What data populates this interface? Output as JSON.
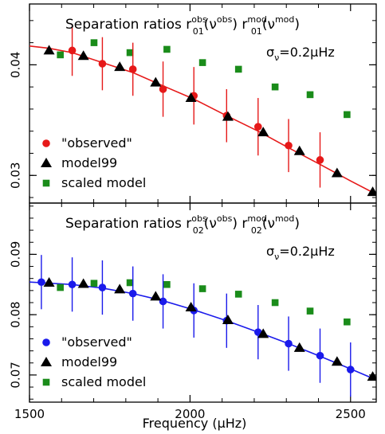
{
  "chart_data": [
    {
      "type": "scatter",
      "title": {
        "prefix": "Separation ratios",
        "sym1": "r",
        "sub1": "01",
        "sup1": "obs",
        "arg1": "ν",
        "arg1sup": "obs",
        "sym2": "r",
        "sub2": "01",
        "sup2": "mod",
        "arg2": "ν",
        "arg2sup": "mod"
      },
      "annotation": {
        "sym": "σ",
        "sub": "ν",
        "text": "=0.2μHz"
      },
      "xlim": [
        1500,
        2580
      ],
      "ylim": [
        0.0275,
        0.0455
      ],
      "yticks": [
        0.03,
        0.04
      ],
      "ytick_labels": [
        "0.03",
        "0.04"
      ],
      "xticks": [
        1500,
        2000,
        2500
      ],
      "xtick_labels": [
        "",
        "",
        ""
      ],
      "grid": false,
      "legend_position": "bottom-left",
      "series": [
        {
          "name": "\"observed\"",
          "marker": "circle",
          "color": "#e61919",
          "x": [
            1633,
            1727,
            1822,
            1916,
            2012,
            2114,
            2212,
            2307,
            2405
          ],
          "y": [
            0.0413,
            0.0401,
            0.0396,
            0.0378,
            0.0372,
            0.0354,
            0.0344,
            0.0327,
            0.0314
          ],
          "err": [
            0.0023,
            0.0024,
            0.0024,
            0.0025,
            0.0026,
            0.0024,
            0.0026,
            0.0024,
            0.0025
          ]
        },
        {
          "name": "model99",
          "marker": "triangle",
          "color": "#000000",
          "x": [
            1561,
            1668,
            1781,
            1893,
            2003,
            2118,
            2228,
            2341,
            2458,
            2569
          ],
          "y": [
            0.0413,
            0.0408,
            0.0398,
            0.0384,
            0.037,
            0.0353,
            0.0339,
            0.0322,
            0.0302,
            0.0285
          ]
        },
        {
          "name": "scaled model",
          "marker": "square",
          "color": "#1a8c1a",
          "x": [
            1596,
            1701,
            1813,
            1928,
            2039,
            2151,
            2265,
            2374,
            2489
          ],
          "y": [
            0.0409,
            0.042,
            0.0411,
            0.0414,
            0.0402,
            0.0396,
            0.038,
            0.0373,
            0.0355
          ]
        }
      ],
      "fit_line": {
        "color": "#e61919",
        "x": [
          1500,
          1560,
          1633,
          1727,
          1822,
          1916,
          2012,
          2114,
          2212,
          2307,
          2405,
          2500,
          2580
        ],
        "y": [
          0.0417,
          0.0415,
          0.0411,
          0.0402,
          0.0393,
          0.0381,
          0.0369,
          0.0354,
          0.034,
          0.0325,
          0.031,
          0.0295,
          0.0283
        ]
      }
    },
    {
      "type": "scatter",
      "title": {
        "prefix": "Separation ratios",
        "sym1": "r",
        "sub1": "02",
        "sup1": "obs",
        "arg1": "ν",
        "arg1sup": "obs",
        "sym2": "r",
        "sub2": "02",
        "sup2": "mod",
        "arg2": "ν",
        "arg2sup": "mod"
      },
      "annotation": {
        "sym": "σ",
        "sub": "ν",
        "text": "=0.2μHz"
      },
      "xlim": [
        1500,
        2580
      ],
      "ylim": [
        0.0655,
        0.0985
      ],
      "yticks": [
        0.07,
        0.08,
        0.09
      ],
      "ytick_labels": [
        "0.07",
        "0.08",
        "0.09"
      ],
      "xticks": [
        1500,
        2000,
        2500
      ],
      "xtick_labels": [
        "1500",
        "2000",
        "2500"
      ],
      "xlabel": "Frequency (μHz)",
      "grid": false,
      "legend_position": "bottom-left",
      "series": [
        {
          "name": "\"observed\"",
          "marker": "circle",
          "color": "#1a1aeb",
          "x": [
            1537,
            1633,
            1727,
            1822,
            1916,
            2012,
            2114,
            2212,
            2307,
            2405,
            2500
          ],
          "y": [
            0.0854,
            0.085,
            0.0845,
            0.0835,
            0.0822,
            0.0807,
            0.079,
            0.0771,
            0.0752,
            0.0732,
            0.0709
          ],
          "err": [
            0.0045,
            0.0045,
            0.0045,
            0.0045,
            0.0045,
            0.0045,
            0.0045,
            0.0045,
            0.0045,
            0.0045,
            0.0045
          ]
        },
        {
          "name": "model99",
          "marker": "triangle",
          "color": "#000000",
          "x": [
            1561,
            1668,
            1781,
            1893,
            2003,
            2118,
            2228,
            2341,
            2458,
            2569
          ],
          "y": [
            0.0853,
            0.0851,
            0.0842,
            0.083,
            0.0812,
            0.0791,
            0.0768,
            0.0745,
            0.0722,
            0.0697
          ]
        },
        {
          "name": "scaled model",
          "marker": "square",
          "color": "#1a8c1a",
          "x": [
            1596,
            1701,
            1813,
            1928,
            2039,
            2151,
            2265,
            2374,
            2489
          ],
          "y": [
            0.0845,
            0.0852,
            0.0853,
            0.085,
            0.0843,
            0.0834,
            0.082,
            0.0806,
            0.0788
          ]
        }
      ],
      "fit_line": {
        "color": "#1a1aeb",
        "x": [
          1500,
          1537,
          1633,
          1727,
          1822,
          1916,
          2012,
          2114,
          2212,
          2307,
          2405,
          2500,
          2580
        ],
        "y": [
          0.0854,
          0.0853,
          0.085,
          0.0844,
          0.0835,
          0.0823,
          0.0808,
          0.079,
          0.0771,
          0.0752,
          0.0731,
          0.071,
          0.0692
        ]
      }
    }
  ]
}
